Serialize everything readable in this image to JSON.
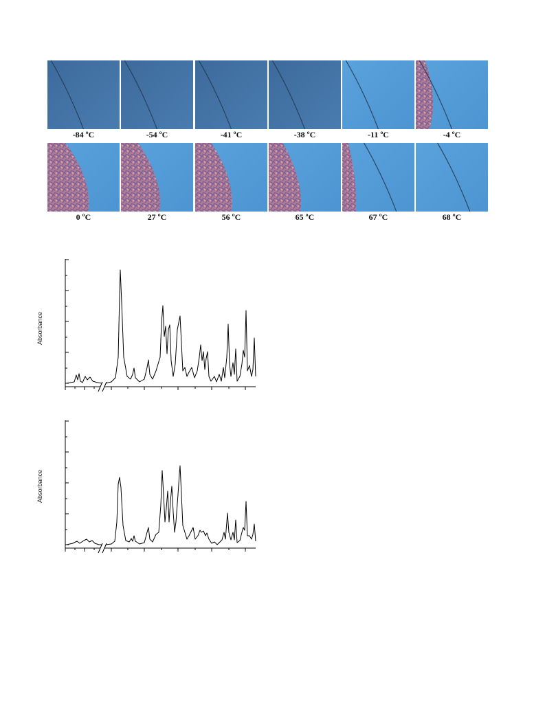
{
  "figure": {
    "captions": [
      "-84 ºC",
      "-54 ºC",
      "-41 ºC",
      "-38 ºC",
      "-11 ºC",
      "-4 ºC",
      "0 ºC",
      "27 ºC",
      "56 ºC",
      "65 ºC",
      "67 ºC",
      "68 ºC"
    ]
  },
  "charts": [
    {
      "ylabel": "Absorbance"
    },
    {
      "ylabel": "Absorbance"
    }
  ]
}
